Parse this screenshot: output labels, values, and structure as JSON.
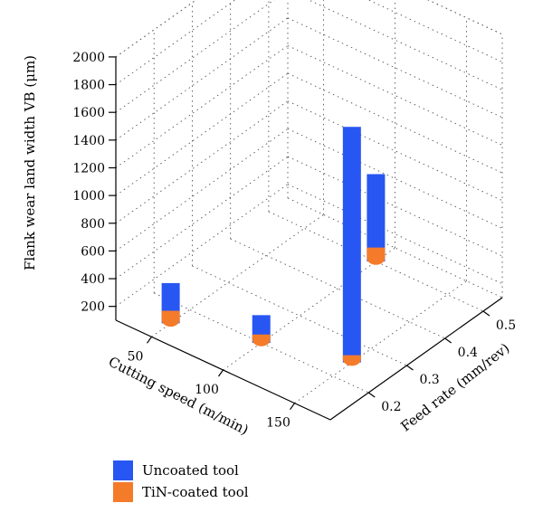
{
  "chart_data": {
    "type": "bar3d",
    "zlabel": "Flank wear land width VB (μm)",
    "xlabel": "Cutting speed (m/min)",
    "ylabel": "Feed rate (mm/rev)",
    "z_ticks": [
      200,
      400,
      600,
      800,
      1000,
      1200,
      1400,
      1600,
      1800,
      2000
    ],
    "x_ticks": [
      50,
      100,
      150
    ],
    "y_ticks": [
      0.2,
      0.3,
      0.4,
      0.5
    ],
    "zlim": [
      100,
      2000
    ],
    "grid": true,
    "legend_position": "bottom-left",
    "points": [
      {
        "cutting_speed": 50,
        "feed_rate": 0.15,
        "uncoated": 390,
        "tin_coated": 190
      },
      {
        "cutting_speed": 100,
        "feed_rate": 0.2,
        "uncoated": 300,
        "tin_coated": 160
      },
      {
        "cutting_speed": 150,
        "feed_rate": 0.25,
        "uncoated": 1800,
        "tin_coated": 120
      },
      {
        "cutting_speed": 100,
        "feed_rate": 0.5,
        "uncoated": 730,
        "tin_coated": 200
      }
    ],
    "series": [
      {
        "name": "Uncoated tool",
        "key": "uncoated",
        "color": "#2756f2"
      },
      {
        "name": "TiN-coated tool",
        "key": "tin_coated",
        "color": "#f47b2a"
      }
    ]
  }
}
